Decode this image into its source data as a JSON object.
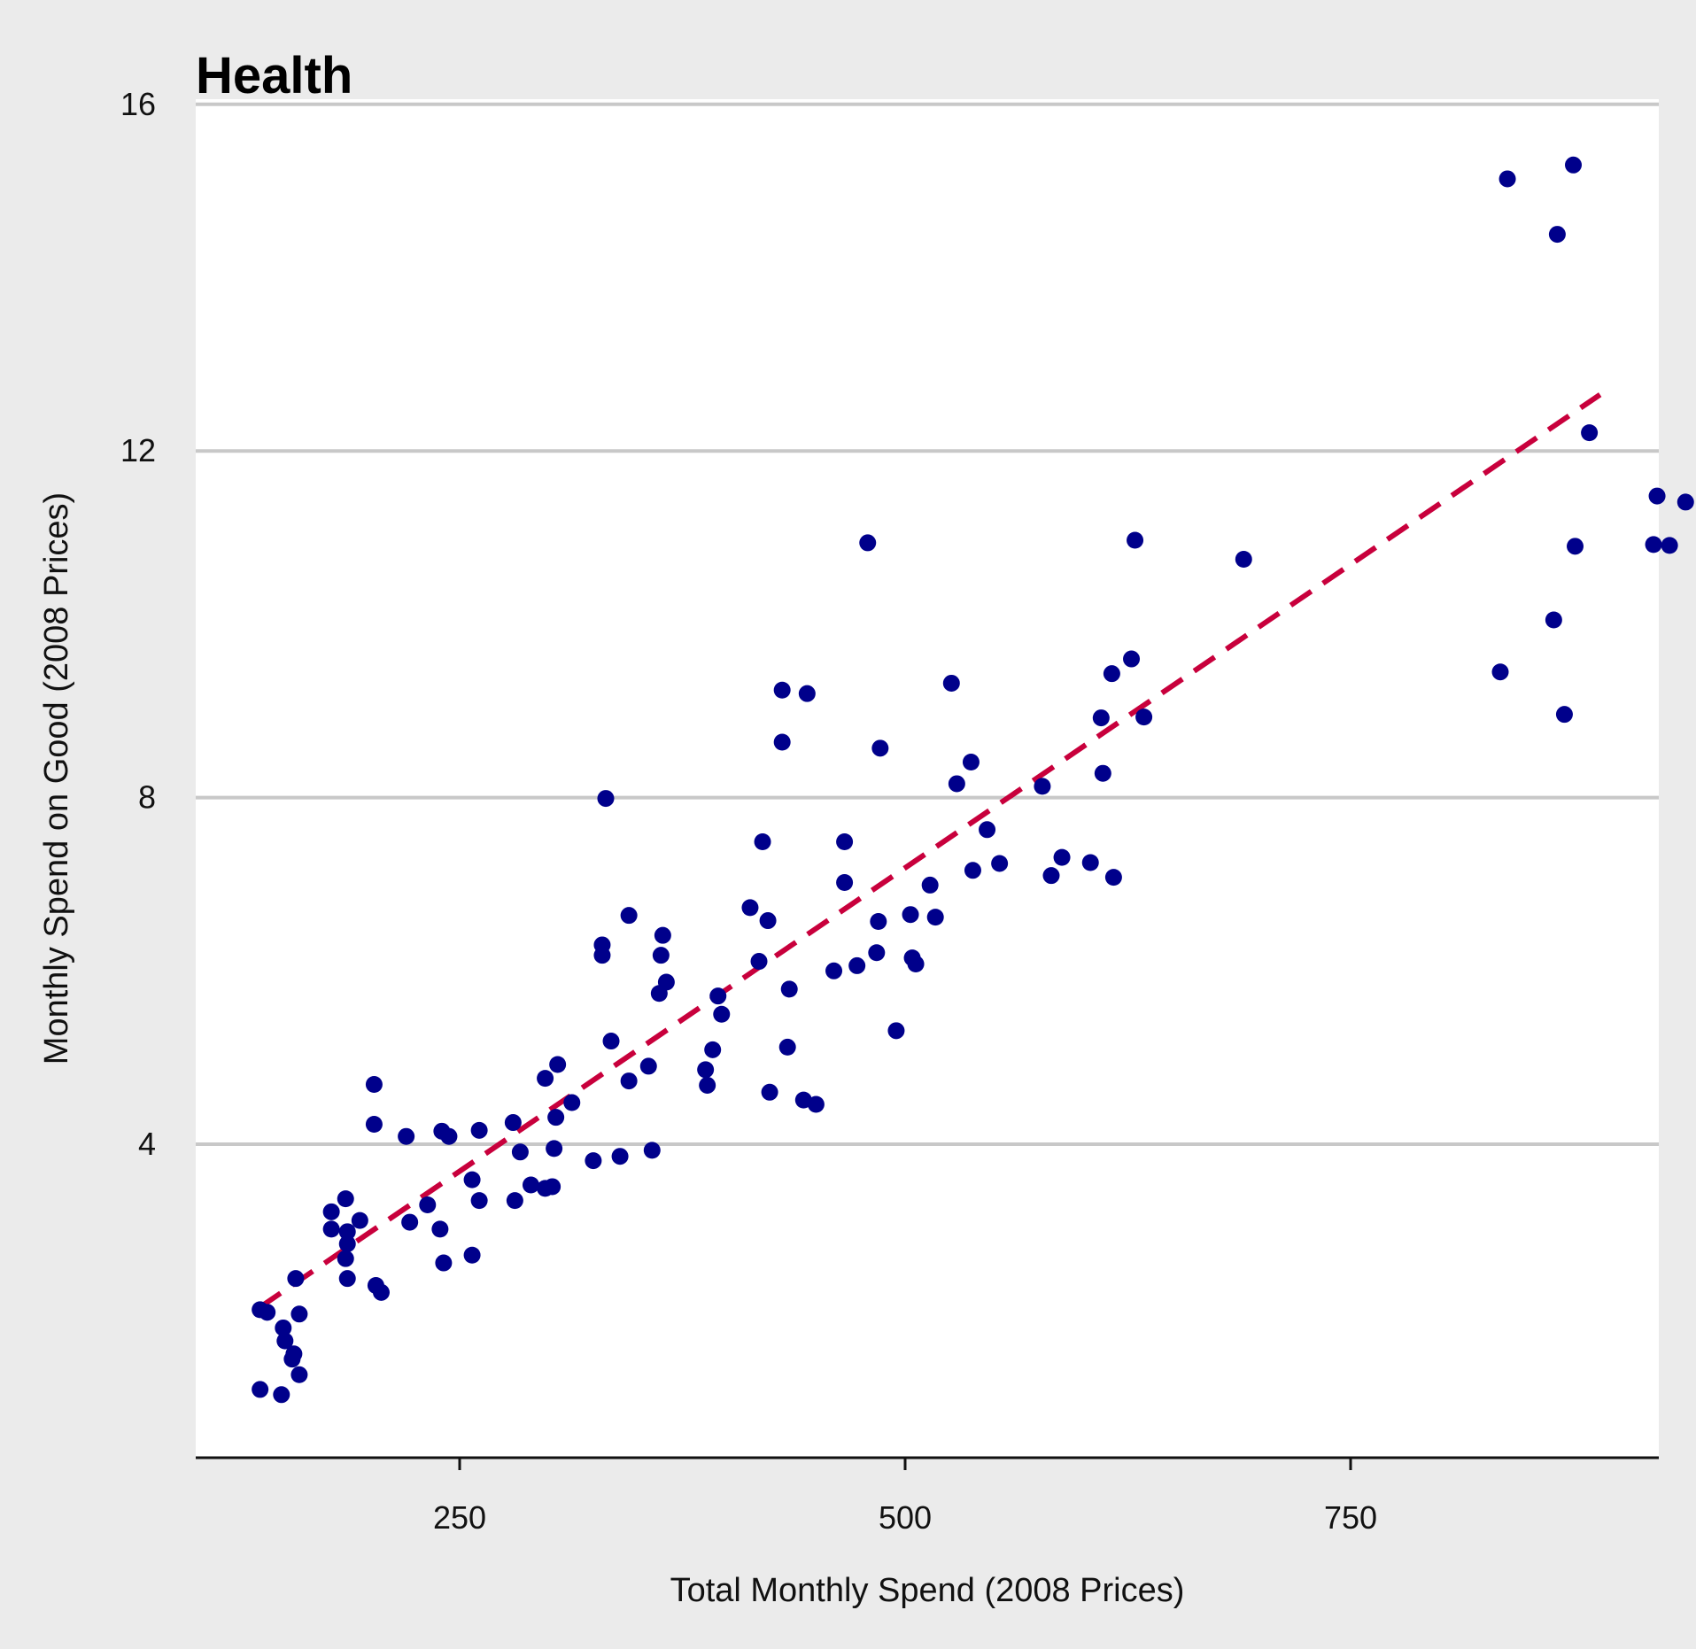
{
  "chart_data": {
    "type": "scatter",
    "title": "Health",
    "xlabel": "Total Monthly Spend (2008 Prices)",
    "ylabel": "Monthly Spend on Good (2008 Prices)",
    "xlim": [
      102,
      922
    ],
    "ylim": [
      0.2,
      16
    ],
    "xticks": [
      250,
      500,
      750
    ],
    "yticks": [
      4,
      8,
      12,
      16
    ],
    "grid": "horizontal",
    "colors": {
      "background": "#ebebeb",
      "panel": "#ffffff",
      "gridline": "#c8c8c8",
      "point": "#00008b",
      "trend": "#c8003c"
    },
    "trend_line": {
      "style": "dashed",
      "x": [
        138,
        890
      ],
      "y": [
        2.12,
        12.65
      ]
    },
    "points": [
      {
        "x": 138,
        "y": 1.17
      },
      {
        "x": 138,
        "y": 2.09
      },
      {
        "x": 142,
        "y": 2.06
      },
      {
        "x": 150,
        "y": 1.11
      },
      {
        "x": 151,
        "y": 1.88
      },
      {
        "x": 152,
        "y": 1.73
      },
      {
        "x": 156,
        "y": 1.52
      },
      {
        "x": 157,
        "y": 1.58
      },
      {
        "x": 158,
        "y": 2.45
      },
      {
        "x": 160,
        "y": 1.34
      },
      {
        "x": 160,
        "y": 2.04
      },
      {
        "x": 178,
        "y": 3.02
      },
      {
        "x": 178,
        "y": 3.22
      },
      {
        "x": 186,
        "y": 2.68
      },
      {
        "x": 186,
        "y": 3.37
      },
      {
        "x": 187,
        "y": 2.99
      },
      {
        "x": 187,
        "y": 2.85
      },
      {
        "x": 187,
        "y": 2.45
      },
      {
        "x": 194,
        "y": 3.12
      },
      {
        "x": 203,
        "y": 2.37
      },
      {
        "x": 202,
        "y": 4.23
      },
      {
        "x": 202,
        "y": 4.69
      },
      {
        "x": 206,
        "y": 2.29
      },
      {
        "x": 220,
        "y": 4.09
      },
      {
        "x": 222,
        "y": 3.1
      },
      {
        "x": 232,
        "y": 3.3
      },
      {
        "x": 239,
        "y": 3.02
      },
      {
        "x": 240,
        "y": 4.15
      },
      {
        "x": 241,
        "y": 2.63
      },
      {
        "x": 244,
        "y": 4.09
      },
      {
        "x": 257,
        "y": 3.59
      },
      {
        "x": 257,
        "y": 2.72
      },
      {
        "x": 261,
        "y": 3.35
      },
      {
        "x": 261,
        "y": 4.16
      },
      {
        "x": 280,
        "y": 4.25
      },
      {
        "x": 281,
        "y": 3.35
      },
      {
        "x": 284,
        "y": 3.91
      },
      {
        "x": 290,
        "y": 3.53
      },
      {
        "x": 298,
        "y": 3.49
      },
      {
        "x": 298,
        "y": 4.76
      },
      {
        "x": 302,
        "y": 3.51
      },
      {
        "x": 303,
        "y": 3.95
      },
      {
        "x": 304,
        "y": 4.31
      },
      {
        "x": 305,
        "y": 4.92
      },
      {
        "x": 313,
        "y": 4.48
      },
      {
        "x": 325,
        "y": 3.81
      },
      {
        "x": 330,
        "y": 6.3
      },
      {
        "x": 330,
        "y": 6.18
      },
      {
        "x": 332,
        "y": 7.99
      },
      {
        "x": 335,
        "y": 5.19
      },
      {
        "x": 340,
        "y": 3.86
      },
      {
        "x": 345,
        "y": 4.73
      },
      {
        "x": 345,
        "y": 6.64
      },
      {
        "x": 356,
        "y": 4.9
      },
      {
        "x": 358,
        "y": 3.93
      },
      {
        "x": 362,
        "y": 5.74
      },
      {
        "x": 363,
        "y": 6.18
      },
      {
        "x": 364,
        "y": 6.41
      },
      {
        "x": 366,
        "y": 5.87
      },
      {
        "x": 388,
        "y": 4.86
      },
      {
        "x": 389,
        "y": 4.68
      },
      {
        "x": 392,
        "y": 5.09
      },
      {
        "x": 395,
        "y": 5.71
      },
      {
        "x": 397,
        "y": 5.5
      },
      {
        "x": 413,
        "y": 6.73
      },
      {
        "x": 418,
        "y": 6.11
      },
      {
        "x": 420,
        "y": 7.49
      },
      {
        "x": 423,
        "y": 6.58
      },
      {
        "x": 424,
        "y": 4.6
      },
      {
        "x": 431,
        "y": 9.24
      },
      {
        "x": 431,
        "y": 8.64
      },
      {
        "x": 434,
        "y": 5.12
      },
      {
        "x": 435,
        "y": 5.79
      },
      {
        "x": 443,
        "y": 4.51
      },
      {
        "x": 445,
        "y": 9.2
      },
      {
        "x": 450,
        "y": 4.46
      },
      {
        "x": 460,
        "y": 6
      },
      {
        "x": 466,
        "y": 7.49
      },
      {
        "x": 466,
        "y": 7.02
      },
      {
        "x": 473,
        "y": 6.06
      },
      {
        "x": 479,
        "y": 10.94
      },
      {
        "x": 484,
        "y": 6.21
      },
      {
        "x": 485,
        "y": 6.57
      },
      {
        "x": 486,
        "y": 8.57
      },
      {
        "x": 495,
        "y": 5.31
      },
      {
        "x": 503,
        "y": 6.65
      },
      {
        "x": 504,
        "y": 6.15
      },
      {
        "x": 506,
        "y": 6.08
      },
      {
        "x": 514,
        "y": 6.99
      },
      {
        "x": 517,
        "y": 6.62
      },
      {
        "x": 526,
        "y": 9.32
      },
      {
        "x": 529,
        "y": 8.16
      },
      {
        "x": 537,
        "y": 8.41
      },
      {
        "x": 538,
        "y": 7.16
      },
      {
        "x": 546,
        "y": 7.63
      },
      {
        "x": 553,
        "y": 7.24
      },
      {
        "x": 577,
        "y": 8.13
      },
      {
        "x": 582,
        "y": 7.1
      },
      {
        "x": 588,
        "y": 7.31
      },
      {
        "x": 604,
        "y": 7.25
      },
      {
        "x": 610,
        "y": 8.92
      },
      {
        "x": 611,
        "y": 8.28
      },
      {
        "x": 616,
        "y": 9.43
      },
      {
        "x": 617,
        "y": 7.08
      },
      {
        "x": 627,
        "y": 9.6
      },
      {
        "x": 629,
        "y": 10.97
      },
      {
        "x": 634,
        "y": 8.93
      },
      {
        "x": 690,
        "y": 10.75
      },
      {
        "x": 834,
        "y": 9.45
      },
      {
        "x": 838,
        "y": 15.14
      },
      {
        "x": 864,
        "y": 10.05
      },
      {
        "x": 866,
        "y": 14.5
      },
      {
        "x": 870,
        "y": 8.96
      },
      {
        "x": 875,
        "y": 15.3
      },
      {
        "x": 876,
        "y": 10.9
      },
      {
        "x": 884,
        "y": 12.21
      },
      {
        "x": 920,
        "y": 10.92
      },
      {
        "x": 922,
        "y": 11.48
      },
      {
        "x": 929,
        "y": 10.91
      },
      {
        "x": 938,
        "y": 11.41
      }
    ]
  }
}
